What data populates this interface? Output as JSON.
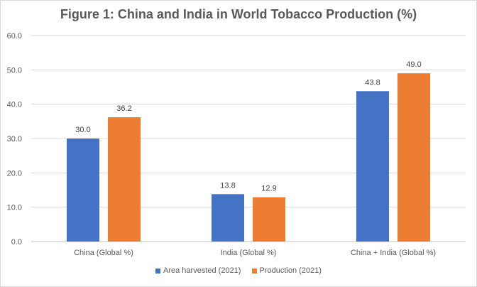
{
  "chart_data": {
    "type": "bar",
    "title": "Figure 1: China and India in World Tobacco Production (%)",
    "categories": [
      "China (Global %)",
      "India (Global %)",
      "China + India (Global %)"
    ],
    "series": [
      {
        "name": "Area harvested (2021)",
        "color": "#4472c4",
        "values": [
          30.0,
          13.8,
          43.8
        ],
        "labels": [
          "30.0",
          "13.8",
          "43.8"
        ]
      },
      {
        "name": "Production (2021)",
        "color": "#ed7d31",
        "values": [
          36.2,
          12.9,
          49.0
        ],
        "labels": [
          "36.2",
          "12.9",
          "49.0"
        ]
      }
    ],
    "ylim": [
      0,
      60
    ],
    "yticks": [
      "0.0",
      "10.0",
      "20.0",
      "30.0",
      "40.0",
      "50.0",
      "60.0"
    ],
    "grid": true,
    "legend_position": "bottom",
    "xlabel": "",
    "ylabel": ""
  }
}
